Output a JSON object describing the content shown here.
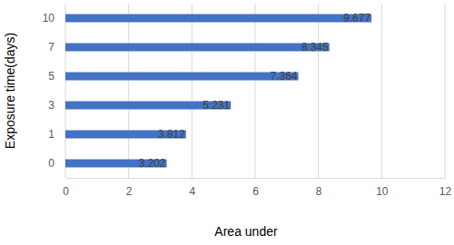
{
  "chart_data": {
    "type": "bar",
    "orientation": "horizontal",
    "x_label": "Area under",
    "y_label": "Exposure time(days)",
    "categories": [
      "0",
      "1",
      "3",
      "5",
      "7",
      "10"
    ],
    "values": [
      3.202,
      3.812,
      5.231,
      7.364,
      8.345,
      9.677
    ],
    "color": "#4472c4",
    "xlim": [
      0,
      12
    ],
    "xticks": [
      0,
      2,
      4,
      6,
      8,
      10,
      12
    ],
    "grid": true,
    "data_labels": true
  }
}
